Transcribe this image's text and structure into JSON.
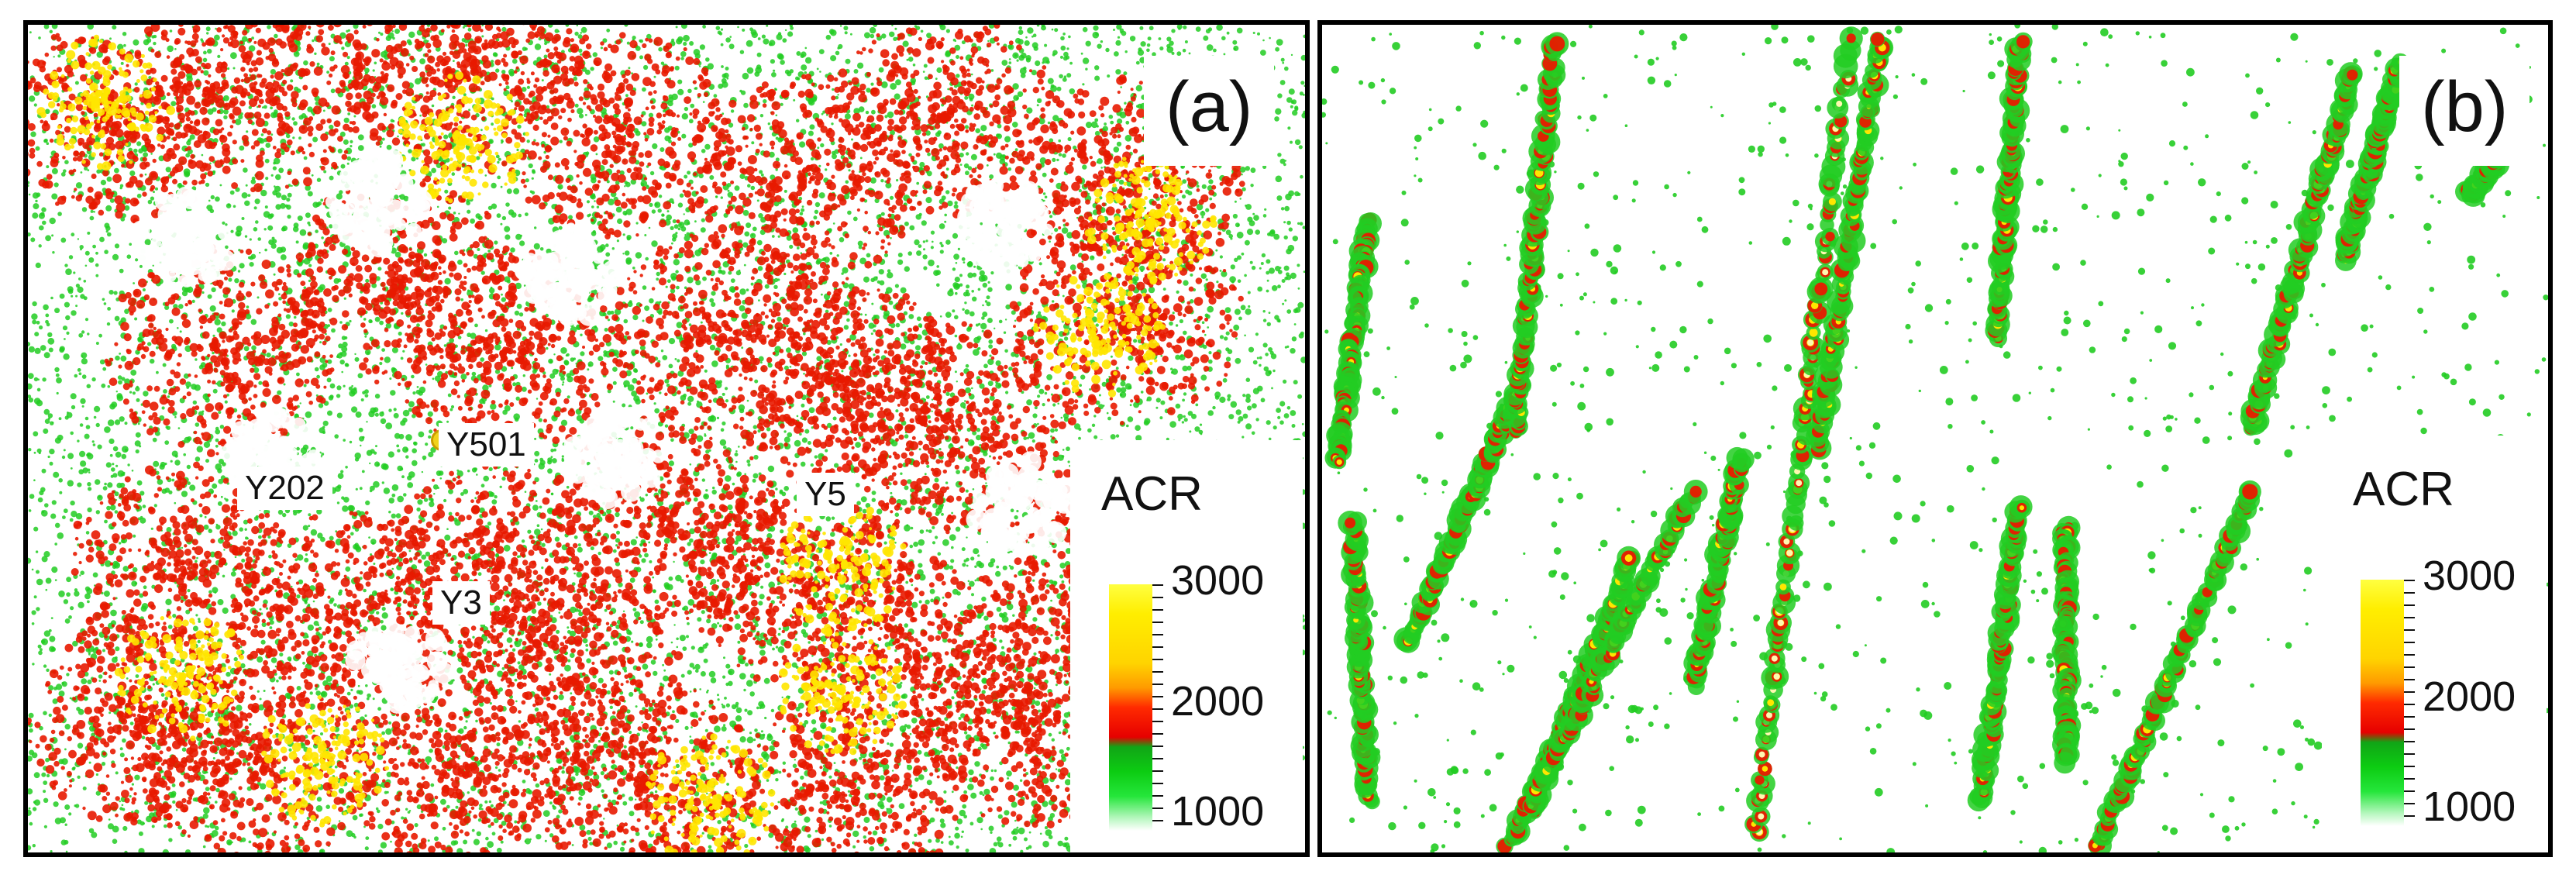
{
  "panels": [
    {
      "tag": "(a)",
      "wells": [
        "Y501",
        "Y202",
        "Y5",
        "Y3"
      ],
      "legend": {
        "title": "ACR",
        "max": "3000",
        "mid": "2000",
        "min": "1000"
      }
    },
    {
      "tag": "(b)",
      "legend": {
        "title": "ACR",
        "max": "3000",
        "mid": "2000",
        "min": "1000"
      }
    }
  ],
  "colors": {
    "low": "#22cc22",
    "mid": "#e81a00",
    "high": "#ffe600",
    "peak": "#fff8b0",
    "well_marker": "#f1d21a"
  }
}
